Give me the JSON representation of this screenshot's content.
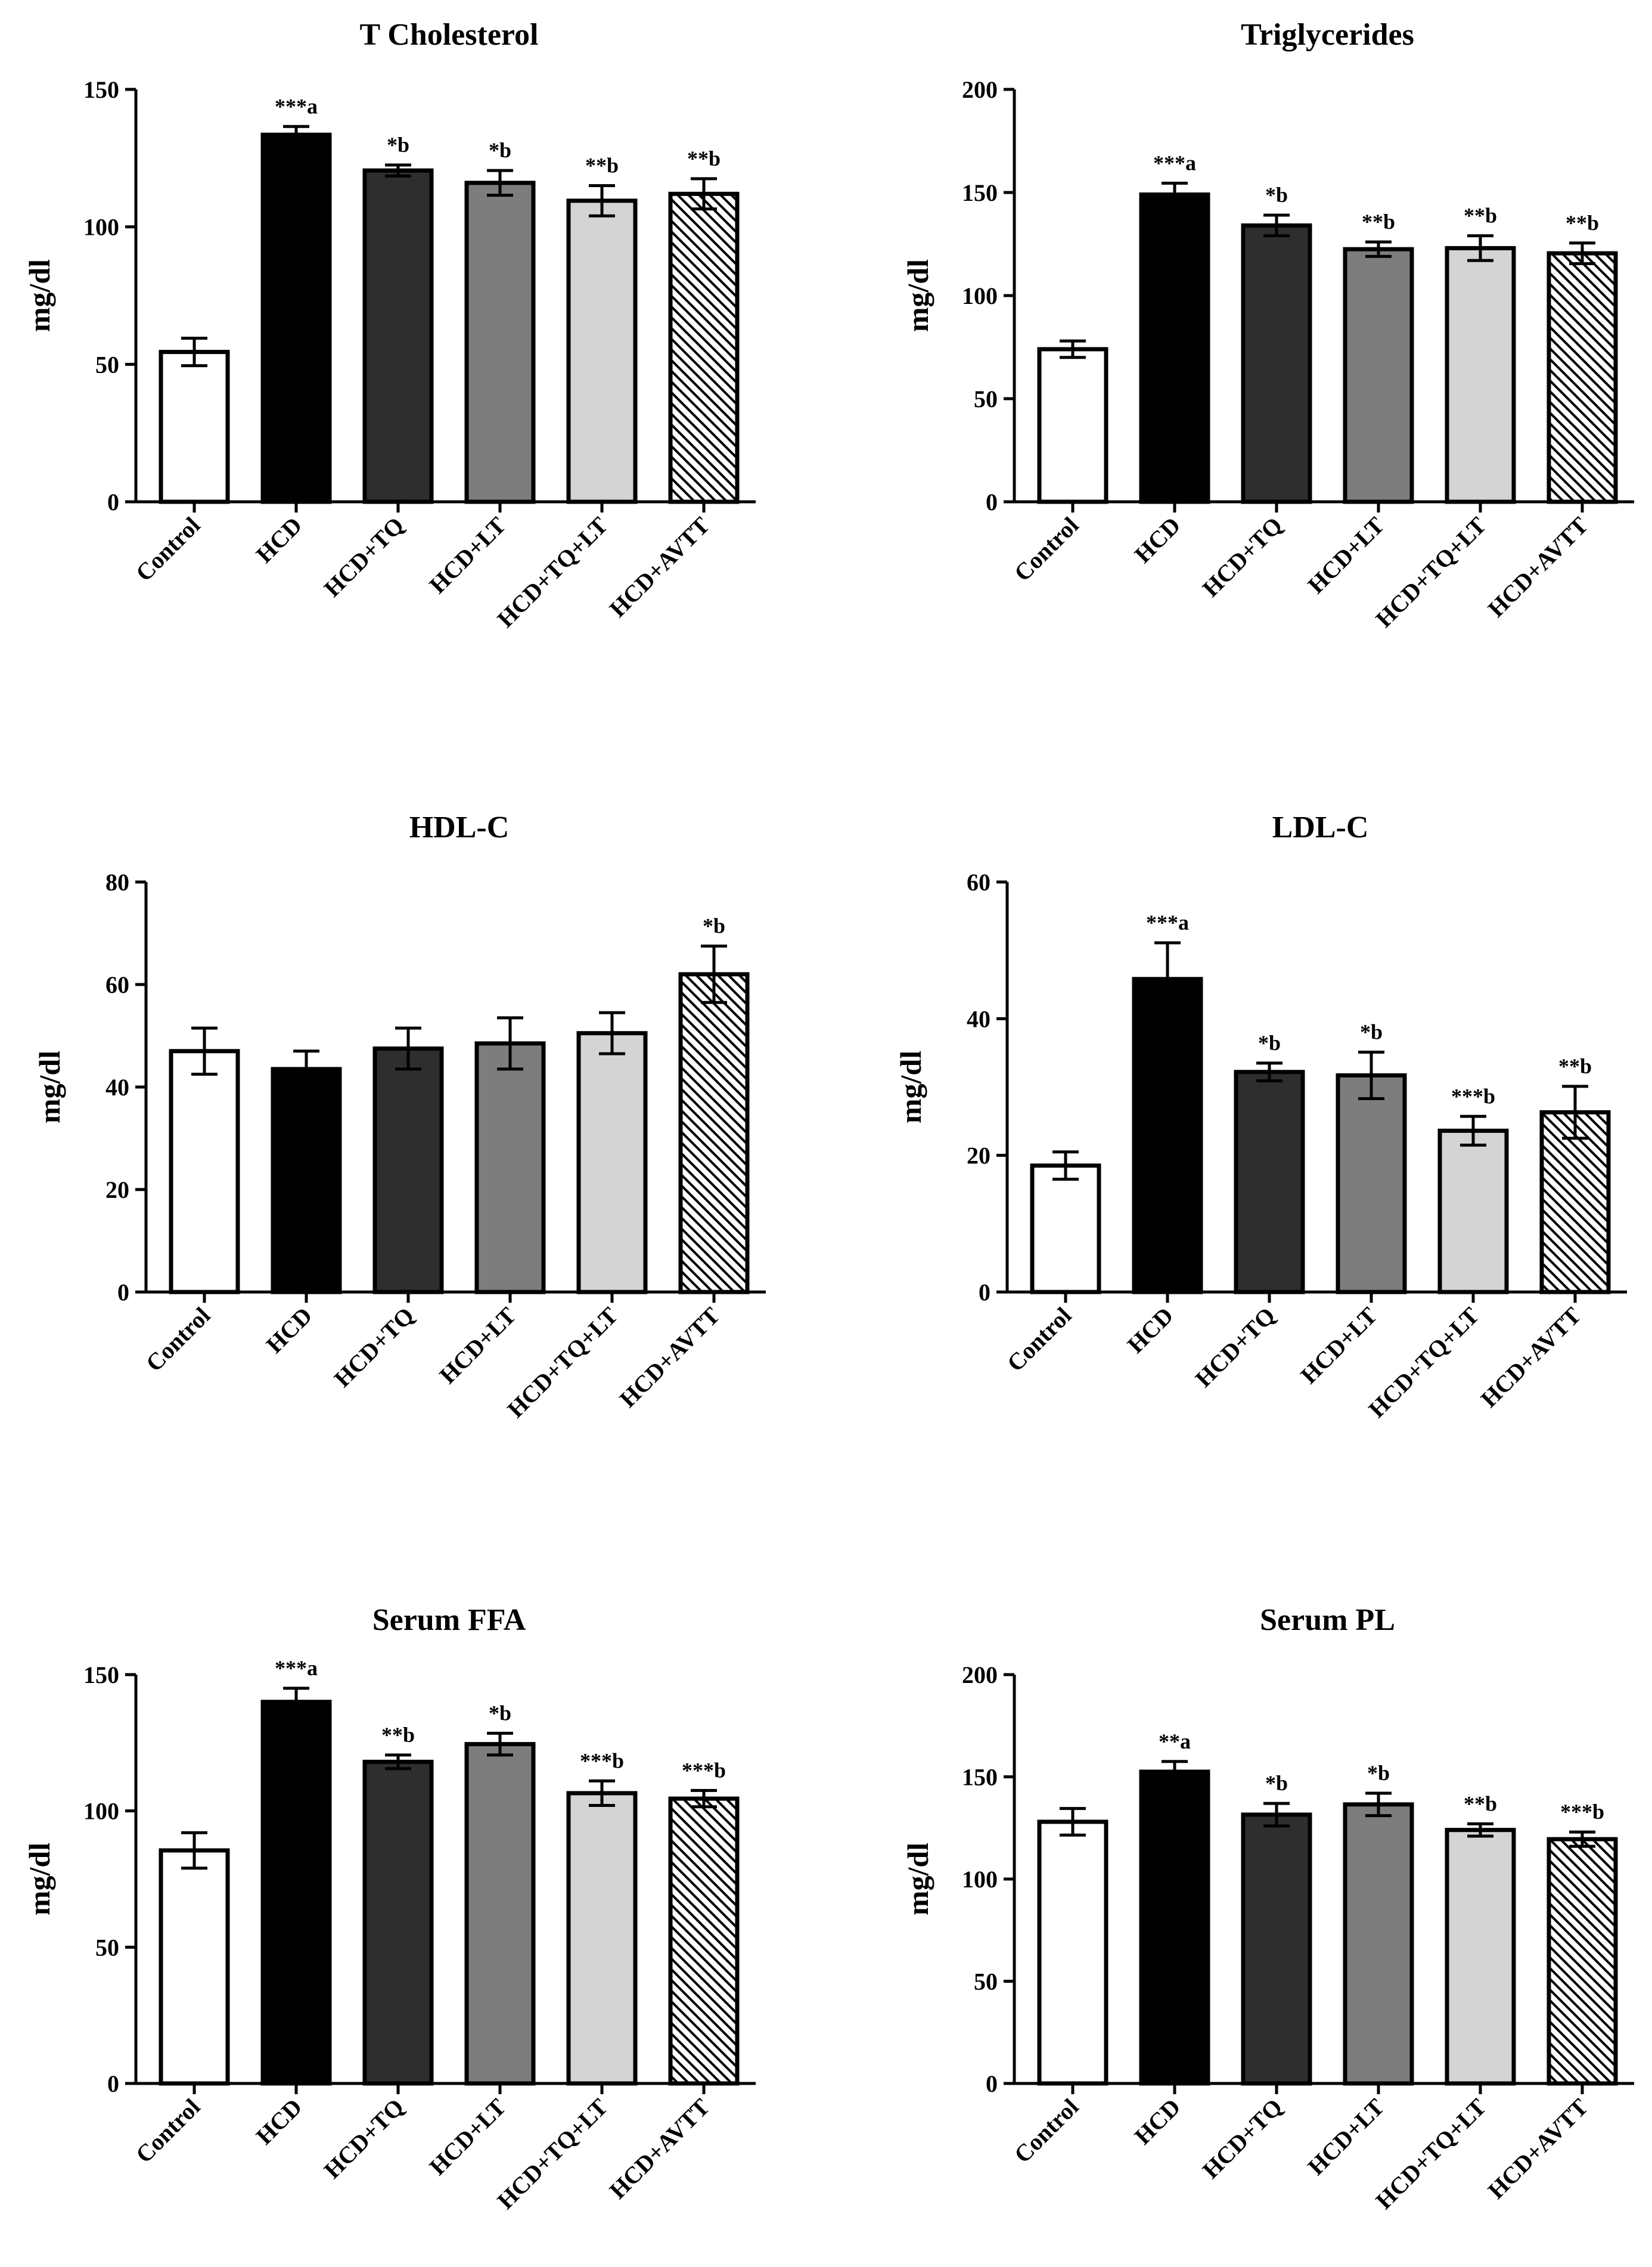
{
  "categories": [
    "Control",
    "HCD",
    "HCD+TQ",
    "HCD+LT",
    "HCD+TQ+LT",
    "HCD+AVTT"
  ],
  "series_fills": [
    "#ffffff",
    "#000000",
    "#2e2e2e",
    "#7d7d7d",
    "#d4d4d4",
    "hatch"
  ],
  "chart_data": [
    {
      "type": "bar",
      "title": "T Cholesterol",
      "ylabel": "mg/dl",
      "xlabel": "",
      "ylim": [
        0,
        150
      ],
      "yticks": [
        0,
        50,
        100,
        150
      ],
      "categories": [
        "Control",
        "HCD",
        "HCD+TQ",
        "HCD+LT",
        "HCD+TQ+LT",
        "HCD+AVTT"
      ],
      "values": [
        54.5,
        133.5,
        120.5,
        116,
        109.5,
        112
      ],
      "errors": [
        5,
        3,
        2,
        4.5,
        5.5,
        5.5
      ],
      "annotations": [
        "",
        "***a",
        "*b",
        "*b",
        "**b",
        "**b"
      ]
    },
    {
      "type": "bar",
      "title": "Triglycerides",
      "ylabel": "mg/dl",
      "xlabel": "",
      "ylim": [
        0,
        200
      ],
      "yticks": [
        0,
        50,
        100,
        150,
        200
      ],
      "categories": [
        "Control",
        "HCD",
        "HCD+TQ",
        "HCD+LT",
        "HCD+TQ+LT",
        "HCD+AVTT"
      ],
      "values": [
        74,
        149,
        134,
        122.5,
        123,
        120.5
      ],
      "errors": [
        4,
        5.5,
        5,
        3.5,
        6,
        5
      ],
      "annotations": [
        "",
        "***a",
        "*b",
        "**b",
        "**b",
        "**b"
      ]
    },
    {
      "type": "bar",
      "title": "HDL-C",
      "ylabel": "mg/dl",
      "xlabel": "",
      "ylim": [
        0,
        80
      ],
      "yticks": [
        0,
        20,
        40,
        60,
        80
      ],
      "categories": [
        "Control",
        "HCD",
        "HCD+TQ",
        "HCD+LT",
        "HCD+TQ+LT",
        "HCD+AVTT"
      ],
      "values": [
        47,
        43.5,
        47.5,
        48.5,
        50.5,
        62
      ],
      "errors": [
        4.5,
        3.5,
        4,
        5,
        4,
        5.5
      ],
      "annotations": [
        "",
        "",
        "",
        "",
        "",
        "*b"
      ]
    },
    {
      "type": "bar",
      "title": "LDL-C",
      "ylabel": "mg/dl",
      "xlabel": "",
      "ylim": [
        0,
        60
      ],
      "yticks": [
        0,
        20,
        40,
        60
      ],
      "categories": [
        "Control",
        "HCD",
        "HCD+TQ",
        "HCD+LT",
        "HCD+TQ+LT",
        "HCD+AVTT"
      ],
      "values": [
        18.5,
        45.8,
        32.2,
        31.7,
        23.6,
        26.3
      ],
      "errors": [
        2,
        5.3,
        1.3,
        3.4,
        2.1,
        3.8
      ],
      "annotations": [
        "",
        "***a",
        "*b",
        "*b",
        "***b",
        "**b"
      ]
    },
    {
      "type": "bar",
      "title": "Serum FFA",
      "ylabel": "mg/dl",
      "xlabel": "",
      "ylim": [
        0,
        150
      ],
      "yticks": [
        0,
        50,
        100,
        150
      ],
      "categories": [
        "Control",
        "HCD",
        "HCD+TQ",
        "HCD+LT",
        "HCD+TQ+LT",
        "HCD+AVTT"
      ],
      "values": [
        85.5,
        140,
        118,
        124.5,
        106.5,
        104.5
      ],
      "errors": [
        6.5,
        5,
        2.5,
        4,
        4.5,
        3
      ],
      "annotations": [
        "",
        "***a",
        "**b",
        "*b",
        "***b",
        "***b"
      ]
    },
    {
      "type": "bar",
      "title": "Serum PL",
      "ylabel": "mg/dl",
      "xlabel": "",
      "ylim": [
        0,
        200
      ],
      "yticks": [
        0,
        50,
        100,
        150,
        200
      ],
      "categories": [
        "Control",
        "HCD",
        "HCD+TQ",
        "HCD+LT",
        "HCD+TQ+LT",
        "HCD+AVTT"
      ],
      "values": [
        128,
        152.5,
        131.5,
        136.5,
        124,
        119.5
      ],
      "errors": [
        6.5,
        5,
        5.5,
        5.5,
        3,
        3.5
      ],
      "annotations": [
        "",
        "**a",
        "*b",
        "*b",
        "**b",
        "***b"
      ]
    }
  ]
}
